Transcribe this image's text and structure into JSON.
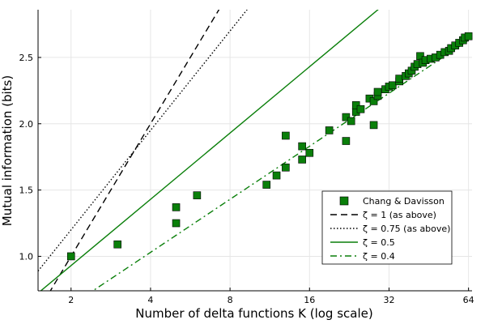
{
  "chart_data": {
    "type": "scatter",
    "title": "",
    "xlabel": "Number of delta functions K (log scale)",
    "ylabel": "Mutual information (bits)",
    "x_scale": "log2",
    "xlim": [
      1.5,
      66
    ],
    "ylim": [
      0.74,
      2.86
    ],
    "x_ticks": [
      {
        "value": 2,
        "label": "2"
      },
      {
        "value": 4,
        "label": "4"
      },
      {
        "value": 8,
        "label": "8"
      },
      {
        "value": 16,
        "label": "16"
      },
      {
        "value": 32,
        "label": "32"
      },
      {
        "value": 64,
        "label": "64"
      }
    ],
    "y_ticks": [
      {
        "value": 1.0,
        "label": "1.0"
      },
      {
        "value": 1.5,
        "label": "1.5"
      },
      {
        "value": 2.0,
        "label": "2.0"
      },
      {
        "value": 2.5,
        "label": "2.5"
      }
    ],
    "grid": true,
    "legend_position": "bottom-right",
    "series": [
      {
        "name": "Chang & Davisson",
        "kind": "scatter",
        "marker": "square",
        "color": "#0a7f0a",
        "points": [
          [
            2,
            1.0
          ],
          [
            3,
            1.09
          ],
          [
            5,
            1.25
          ],
          [
            5,
            1.37
          ],
          [
            6,
            1.46
          ],
          [
            11,
            1.54
          ],
          [
            12,
            1.61
          ],
          [
            13,
            1.67
          ],
          [
            13,
            1.91
          ],
          [
            15,
            1.73
          ],
          [
            15,
            1.83
          ],
          [
            16,
            1.78
          ],
          [
            19,
            1.95
          ],
          [
            22,
            1.87
          ],
          [
            22,
            2.05
          ],
          [
            23,
            2.02
          ],
          [
            24,
            2.09
          ],
          [
            24,
            2.14
          ],
          [
            25,
            2.11
          ],
          [
            27,
            2.19
          ],
          [
            28,
            1.99
          ],
          [
            28,
            2.17
          ],
          [
            29,
            2.21
          ],
          [
            29,
            2.24
          ],
          [
            31,
            2.26
          ],
          [
            32,
            2.28
          ],
          [
            33,
            2.29
          ],
          [
            35,
            2.32
          ],
          [
            35,
            2.34
          ],
          [
            37,
            2.36
          ],
          [
            38,
            2.38
          ],
          [
            39,
            2.4
          ],
          [
            40,
            2.43
          ],
          [
            41,
            2.45
          ],
          [
            42,
            2.51
          ],
          [
            43,
            2.46
          ],
          [
            44,
            2.48
          ],
          [
            46,
            2.49
          ],
          [
            48,
            2.5
          ],
          [
            50,
            2.52
          ],
          [
            52,
            2.54
          ],
          [
            54,
            2.55
          ],
          [
            55,
            2.57
          ],
          [
            57,
            2.59
          ],
          [
            59,
            2.61
          ],
          [
            61,
            2.63
          ],
          [
            62,
            2.65
          ],
          [
            64,
            2.66
          ]
        ]
      },
      {
        "name": "ζ = 1   (as above)",
        "kind": "line",
        "zeta": 1,
        "style": "dashed",
        "color": "#000000"
      },
      {
        "name": "ζ = 0.75 (as above)",
        "kind": "line",
        "zeta": 0.75,
        "style": "dotted",
        "color": "#000000"
      },
      {
        "name": "ζ = 0.5",
        "kind": "line",
        "zeta": 0.5,
        "style": "solid",
        "color": "#0a7f0a"
      },
      {
        "name": "ζ = 0.4",
        "kind": "line",
        "zeta": 0.4,
        "style": "dashdot",
        "color": "#0a7f0a"
      }
    ]
  }
}
